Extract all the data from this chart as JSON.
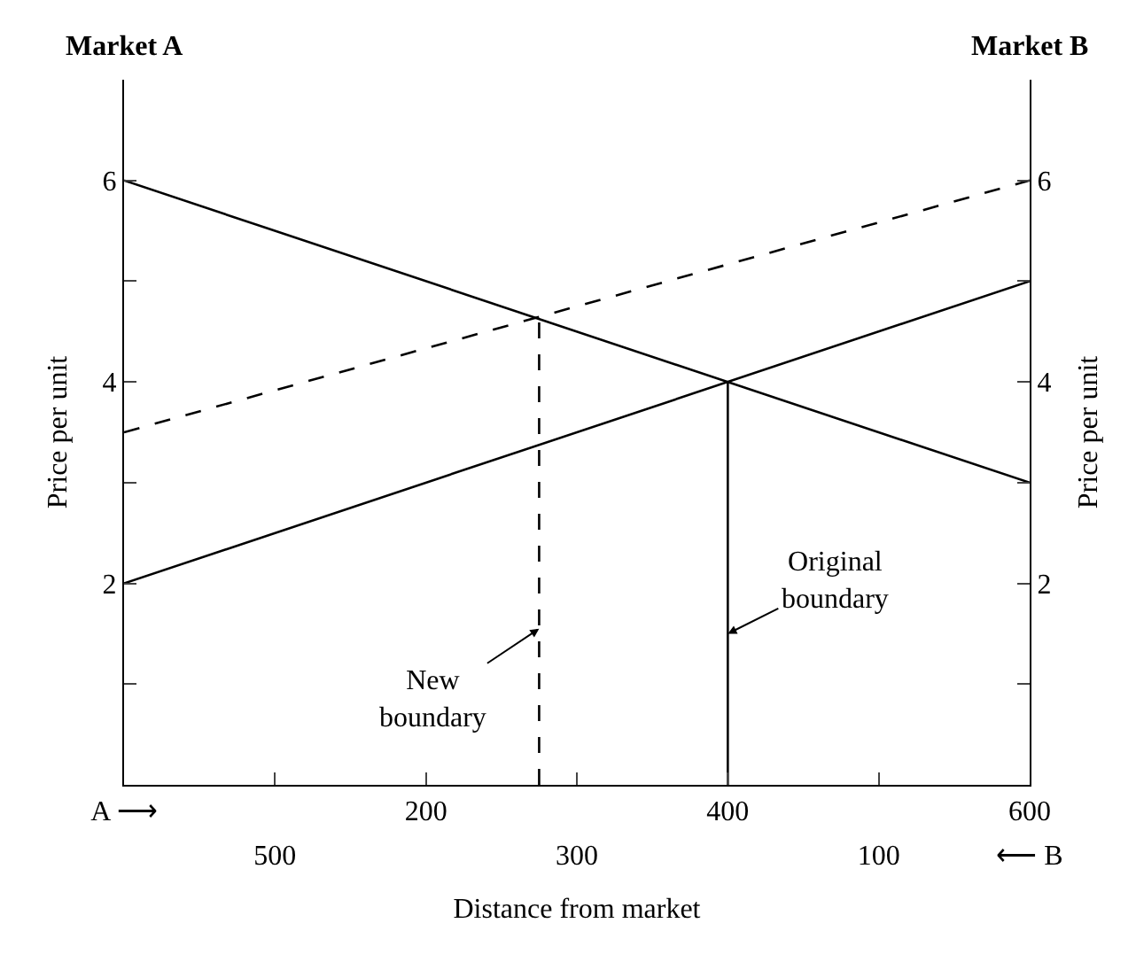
{
  "chart_data": {
    "type": "line",
    "xlabel": "Distance from market",
    "ylabel": "Price per unit",
    "y2label": "Price per unit",
    "xlim": [
      0,
      600
    ],
    "xticks": [
      {
        "value": 0,
        "label": "A ⟶"
      },
      {
        "value": 100,
        "label": null
      },
      200,
      {
        "value": 300,
        "label": null
      },
      400,
      {
        "value": 500,
        "label": null
      },
      600
    ],
    "x2lim": [
      600,
      0
    ],
    "x2ticks": [
      500,
      300,
      100,
      {
        "value": 0,
        "label": "⟵ B"
      }
    ],
    "ylim": [
      0,
      7
    ],
    "yticks": [
      {
        "value": 1,
        "label": null
      },
      2,
      {
        "value": 3,
        "label": null
      },
      4,
      {
        "value": 5,
        "label": null
      },
      6
    ],
    "y2lim": [
      0,
      7
    ],
    "y2ticks": [
      {
        "value": 1,
        "label": null
      },
      2,
      {
        "value": 3,
        "label": null
      },
      4,
      {
        "value": 5,
        "label": null
      },
      6
    ],
    "marker": "none",
    "series": [
      {
        "x": [
          0,
          600
        ],
        "values": [
          6,
          3
        ],
        "color": "#000000",
        "line_style": "solid"
      },
      {
        "x": [
          0,
          600
        ],
        "values": [
          2,
          5
        ],
        "color": "#000000",
        "line_style": "solid"
      },
      {
        "x": [
          0,
          600
        ],
        "values": [
          3.5,
          6
        ],
        "color": "#000000",
        "line_style": "dashed"
      },
      {
        "x": [
          275,
          275
        ],
        "values": [
          0,
          4.62
        ],
        "color": "#000000",
        "line_style": "dashed"
      },
      {
        "x": [
          400,
          400
        ],
        "values": [
          0,
          4
        ],
        "color": "#000000",
        "line_style": "solid"
      }
    ],
    "annotations": [
      {
        "text": "Market A"
      },
      {
        "text": "Market B"
      },
      {
        "text": "New\nboundary",
        "x": 275,
        "y": 1.55
      },
      {
        "text": "Original\nboundary",
        "x": 400,
        "y": 1.5
      }
    ]
  }
}
